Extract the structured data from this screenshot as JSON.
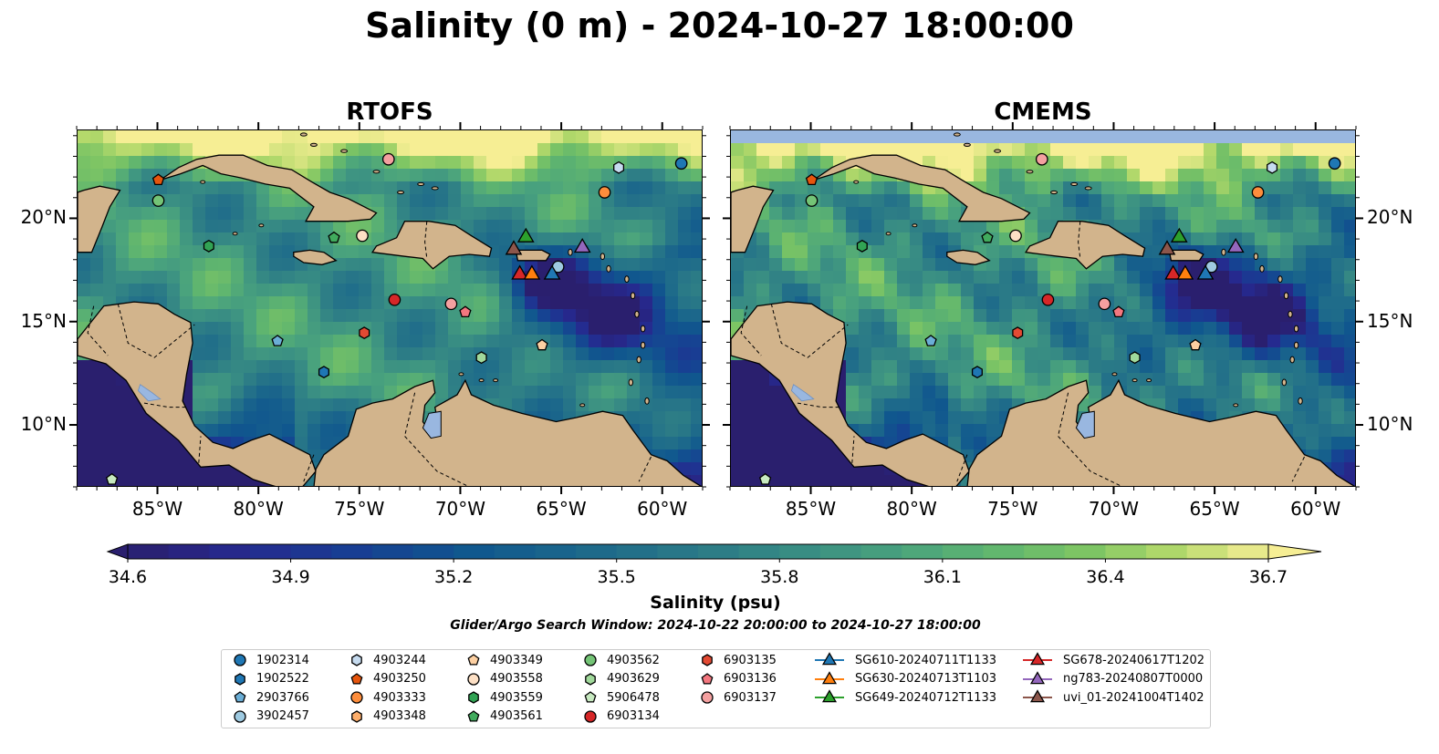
{
  "title": "Salinity (0 m) - 2024-10-27 18:00:00",
  "panels": [
    {
      "title": "RTOFS"
    },
    {
      "title": "CMEMS"
    }
  ],
  "map": {
    "lon_range": [
      -89,
      -58
    ],
    "lat_range": [
      7,
      24.3
    ],
    "lon_ticks": [
      "85°W",
      "80°W",
      "75°W",
      "70°W",
      "65°W",
      "60°W"
    ],
    "lon_values": [
      -85,
      -80,
      -75,
      -70,
      -65,
      -60
    ],
    "lat_ticks": [
      "20°N",
      "15°N",
      "10°N"
    ],
    "lat_values": [
      20,
      15,
      10
    ],
    "land_color": "#d2b48c",
    "lake_color": "#99b7e0"
  },
  "colorbar": {
    "label": "Salinity (psu)",
    "min": 34.6,
    "max": 36.7,
    "tick_labels": [
      "34.6",
      "34.9",
      "35.2",
      "35.5",
      "35.8",
      "36.1",
      "36.4",
      "36.7"
    ],
    "tick_values": [
      34.6,
      34.9,
      35.2,
      35.5,
      35.8,
      36.1,
      36.4,
      36.7
    ],
    "colormap": "haline"
  },
  "search_window": "Glider/Argo Search Window: 2024-10-22 20:00:00 to 2024-10-27 18:00:00",
  "legend": {
    "columns": [
      [
        {
          "label": "1902314",
          "marker": "circle",
          "color": "#1f77b4"
        },
        {
          "label": "1902522",
          "marker": "hexagon",
          "color": "#1f77b4"
        },
        {
          "label": "2903766",
          "marker": "pentagon",
          "color": "#6baed6"
        },
        {
          "label": "3902457",
          "marker": "circle",
          "color": "#9ecae1"
        }
      ],
      [
        {
          "label": "4903244",
          "marker": "hexagon",
          "color": "#c6dbef"
        },
        {
          "label": "4903250",
          "marker": "pentagon",
          "color": "#e6550d"
        },
        {
          "label": "4903333",
          "marker": "circle",
          "color": "#fd8d3c"
        },
        {
          "label": "4903348",
          "marker": "hexagon",
          "color": "#fdae6b"
        }
      ],
      [
        {
          "label": "4903349",
          "marker": "pentagon",
          "color": "#fdd0a2"
        },
        {
          "label": "4903558",
          "marker": "circle",
          "color": "#fde0c5"
        },
        {
          "label": "4903559",
          "marker": "hexagon",
          "color": "#31a354"
        },
        {
          "label": "4903561",
          "marker": "pentagon",
          "color": "#41ab5d"
        }
      ],
      [
        {
          "label": "4903562",
          "marker": "circle",
          "color": "#74c476"
        },
        {
          "label": "4903629",
          "marker": "hexagon",
          "color": "#a1d99b"
        },
        {
          "label": "5906478",
          "marker": "pentagon",
          "color": "#c7e9c0"
        },
        {
          "label": "6903134",
          "marker": "circle",
          "color": "#d62728"
        }
      ],
      [
        {
          "label": "6903135",
          "marker": "hexagon",
          "color": "#e34a33"
        },
        {
          "label": "6903136",
          "marker": "pentagon",
          "color": "#f4777f"
        },
        {
          "label": "6903137",
          "marker": "circle",
          "color": "#f4a0a0"
        }
      ],
      [
        {
          "label": "SG610-20240711T1133",
          "marker": "triangle",
          "color": "#1f77b4"
        },
        {
          "label": "SG630-20240713T1103",
          "marker": "triangle",
          "color": "#ff7f0e"
        },
        {
          "label": "SG649-20240712T1133",
          "marker": "triangle",
          "color": "#2ca02c"
        }
      ],
      [
        {
          "label": "SG678-20240617T1202",
          "marker": "triangle",
          "color": "#d62728"
        },
        {
          "label": "ng783-20240807T0000",
          "marker": "triangle",
          "color": "#9467bd"
        },
        {
          "label": "uvi_01-20241004T1402",
          "marker": "triangle",
          "color": "#8c564b"
        }
      ]
    ]
  },
  "observations": [
    {
      "id": "1902314",
      "lon": -59.1,
      "lat": 22.7
    },
    {
      "id": "4903244",
      "lon": -62.2,
      "lat": 22.5
    },
    {
      "id": "4903333",
      "lon": -62.9,
      "lat": 21.3
    },
    {
      "id": "4903250",
      "lon": -85.0,
      "lat": 21.9
    },
    {
      "id": "4903562",
      "lon": -85.0,
      "lat": 20.9
    },
    {
      "id": "4903137",
      "lon": -73.6,
      "lat": 22.9
    },
    {
      "id": "4903558",
      "lon": -74.9,
      "lat": 19.2
    },
    {
      "id": "4903561",
      "lon": -76.3,
      "lat": 19.1
    },
    {
      "id": "4903559",
      "lon": -82.5,
      "lat": 18.7
    },
    {
      "id": "3902457",
      "lon": -65.2,
      "lat": 17.7
    },
    {
      "id": "6903134",
      "lon": -73.3,
      "lat": 16.1
    },
    {
      "id": "6903137",
      "lon": -70.5,
      "lat": 15.9
    },
    {
      "id": "6903136",
      "lon": -69.8,
      "lat": 15.5
    },
    {
      "id": "6903135",
      "lon": -74.8,
      "lat": 14.5
    },
    {
      "id": "4903349",
      "lon": -66.0,
      "lat": 13.9
    },
    {
      "id": "2903766",
      "lon": -79.1,
      "lat": 14.1
    },
    {
      "id": "4903629",
      "lon": -69.0,
      "lat": 13.3
    },
    {
      "id": "1902522",
      "lon": -76.8,
      "lat": 12.6
    },
    {
      "id": "5906478",
      "lon": -87.3,
      "lat": 7.4
    },
    {
      "id": "SG649-20240712T1133",
      "lon": -66.8,
      "lat": 19.2
    },
    {
      "id": "uvi_01-20241004T1402",
      "lon": -67.4,
      "lat": 18.6
    },
    {
      "id": "ng783-20240807T0000",
      "lon": -64.0,
      "lat": 18.7
    },
    {
      "id": "SG678-20240617T1202",
      "lon": -67.1,
      "lat": 17.4
    },
    {
      "id": "SG630-20240713T1103",
      "lon": -66.5,
      "lat": 17.4
    },
    {
      "id": "SG610-20240711T1133",
      "lon": -65.5,
      "lat": 17.4
    }
  ]
}
